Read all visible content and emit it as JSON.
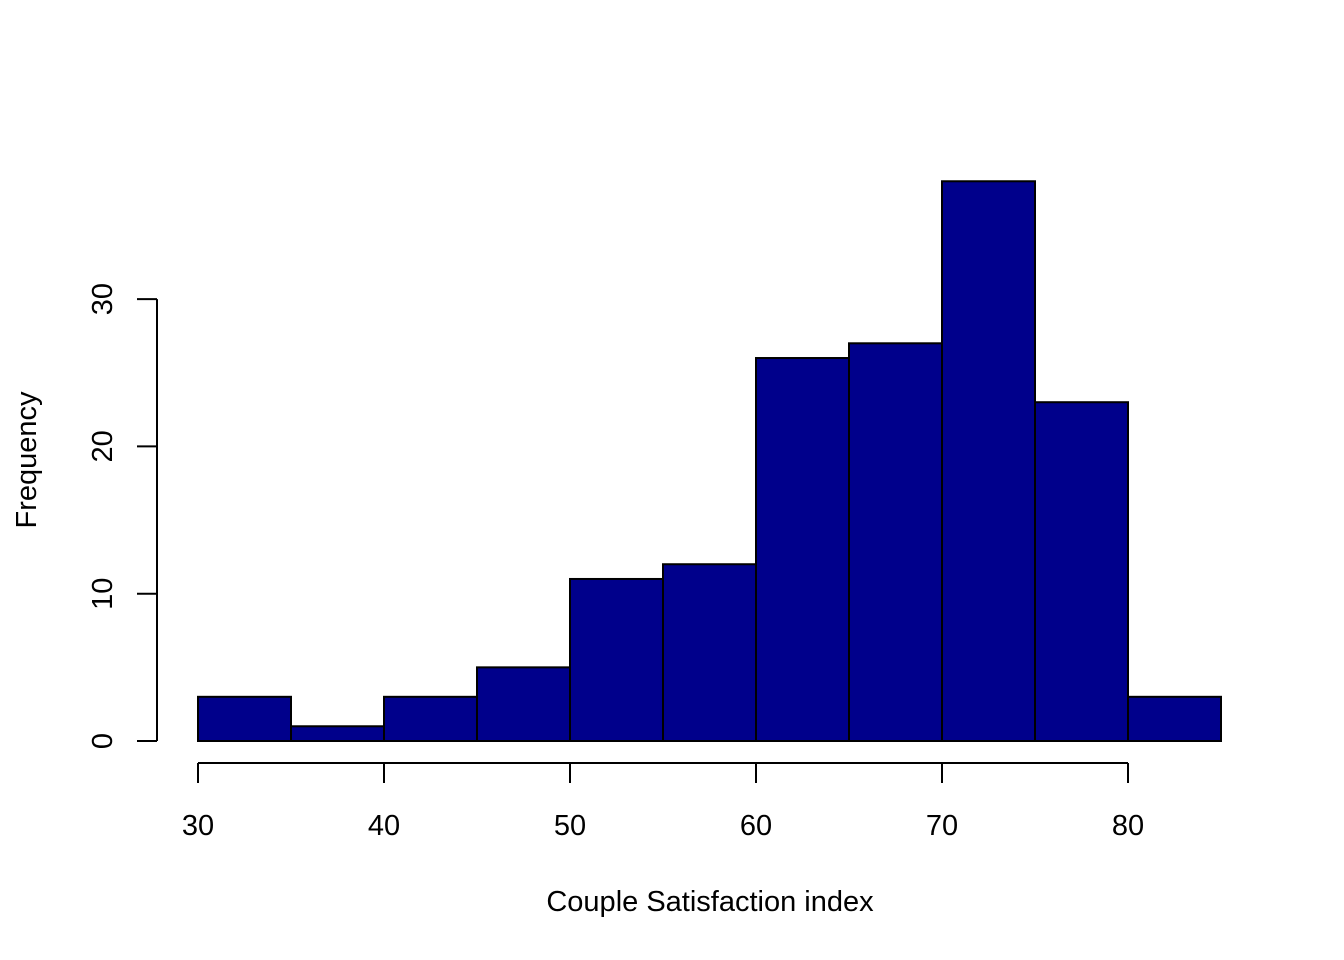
{
  "chart_data": {
    "type": "bar",
    "title": "",
    "xlabel": "Couple Satisfaction index",
    "ylabel": "Frequency",
    "bin_edges": [
      30,
      35,
      40,
      45,
      50,
      55,
      60,
      65,
      70,
      75,
      80,
      85
    ],
    "values": [
      3,
      1,
      3,
      5,
      11,
      12,
      26,
      27,
      38,
      23,
      3
    ],
    "xlim": [
      30,
      85
    ],
    "ylim": [
      0,
      38
    ],
    "x_ticks": [
      30,
      40,
      50,
      60,
      70,
      80
    ],
    "y_ticks": [
      0,
      10,
      20,
      30
    ],
    "grid": false,
    "bar_color": "#00008B",
    "border_color": "#000000"
  }
}
